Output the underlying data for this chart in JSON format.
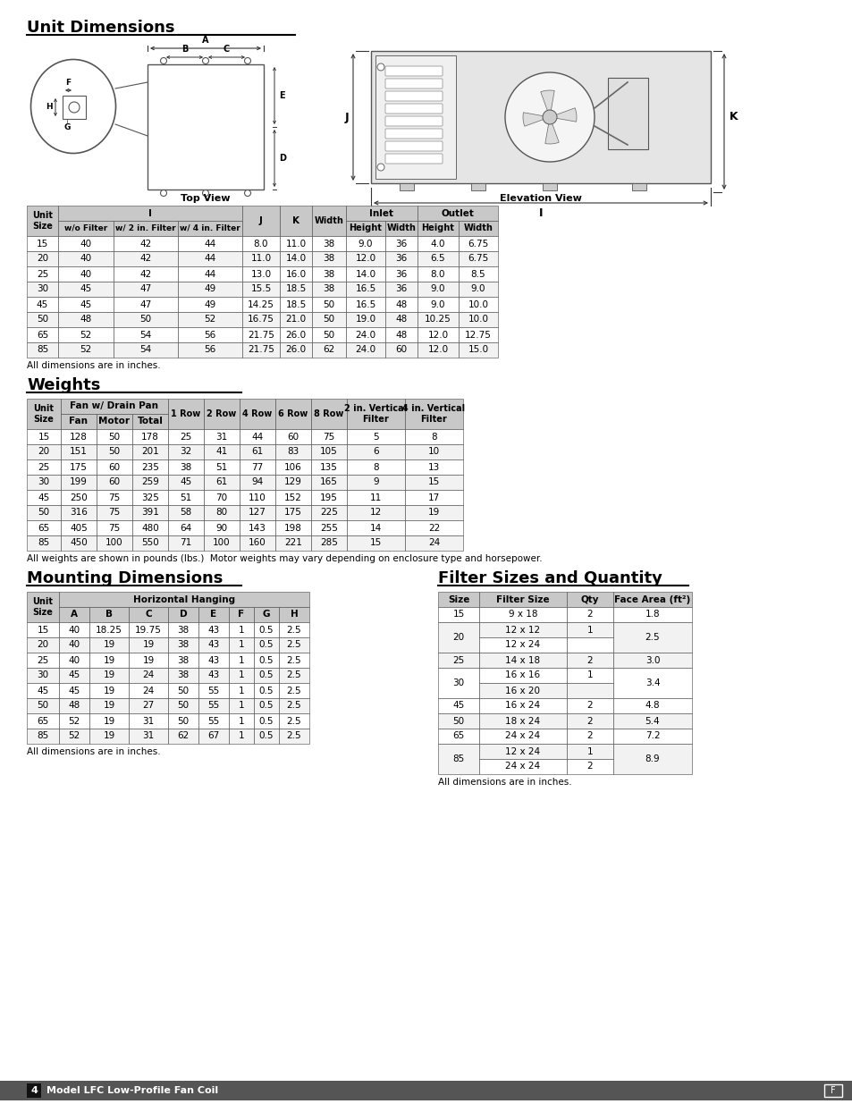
{
  "page_bg": "#ffffff",
  "title1": "Unit Dimensions",
  "title2": "Weights",
  "title3": "Mounting Dimensions",
  "title4": "Filter Sizes and Quantity",
  "ud_data": [
    [
      "15",
      "40",
      "42",
      "44",
      "8.0",
      "11.0",
      "38",
      "9.0",
      "36",
      "4.0",
      "6.75"
    ],
    [
      "20",
      "40",
      "42",
      "44",
      "11.0",
      "14.0",
      "38",
      "12.0",
      "36",
      "6.5",
      "6.75"
    ],
    [
      "25",
      "40",
      "42",
      "44",
      "13.0",
      "16.0",
      "38",
      "14.0",
      "36",
      "8.0",
      "8.5"
    ],
    [
      "30",
      "45",
      "47",
      "49",
      "15.5",
      "18.5",
      "38",
      "16.5",
      "36",
      "9.0",
      "9.0"
    ],
    [
      "45",
      "45",
      "47",
      "49",
      "14.25",
      "18.5",
      "50",
      "16.5",
      "48",
      "9.0",
      "10.0"
    ],
    [
      "50",
      "48",
      "50",
      "52",
      "16.75",
      "21.0",
      "50",
      "19.0",
      "48",
      "10.25",
      "10.0"
    ],
    [
      "65",
      "52",
      "54",
      "56",
      "21.75",
      "26.0",
      "50",
      "24.0",
      "48",
      "12.0",
      "12.75"
    ],
    [
      "85",
      "52",
      "54",
      "56",
      "21.75",
      "26.0",
      "62",
      "24.0",
      "60",
      "12.0",
      "15.0"
    ]
  ],
  "wt_data": [
    [
      "15",
      "128",
      "50",
      "178",
      "25",
      "31",
      "44",
      "60",
      "75",
      "5",
      "8"
    ],
    [
      "20",
      "151",
      "50",
      "201",
      "32",
      "41",
      "61",
      "83",
      "105",
      "6",
      "10"
    ],
    [
      "25",
      "175",
      "60",
      "235",
      "38",
      "51",
      "77",
      "106",
      "135",
      "8",
      "13"
    ],
    [
      "30",
      "199",
      "60",
      "259",
      "45",
      "61",
      "94",
      "129",
      "165",
      "9",
      "15"
    ],
    [
      "45",
      "250",
      "75",
      "325",
      "51",
      "70",
      "110",
      "152",
      "195",
      "11",
      "17"
    ],
    [
      "50",
      "316",
      "75",
      "391",
      "58",
      "80",
      "127",
      "175",
      "225",
      "12",
      "19"
    ],
    [
      "65",
      "405",
      "75",
      "480",
      "64",
      "90",
      "143",
      "198",
      "255",
      "14",
      "22"
    ],
    [
      "85",
      "450",
      "100",
      "550",
      "71",
      "100",
      "160",
      "221",
      "285",
      "15",
      "24"
    ]
  ],
  "md_data": [
    [
      "15",
      "40",
      "18.25",
      "19.75",
      "38",
      "43",
      "1",
      "0.5",
      "2.5"
    ],
    [
      "20",
      "40",
      "19",
      "19",
      "38",
      "43",
      "1",
      "0.5",
      "2.5"
    ],
    [
      "25",
      "40",
      "19",
      "19",
      "38",
      "43",
      "1",
      "0.5",
      "2.5"
    ],
    [
      "30",
      "45",
      "19",
      "24",
      "38",
      "43",
      "1",
      "0.5",
      "2.5"
    ],
    [
      "45",
      "45",
      "19",
      "24",
      "50",
      "55",
      "1",
      "0.5",
      "2.5"
    ],
    [
      "50",
      "48",
      "19",
      "27",
      "50",
      "55",
      "1",
      "0.5",
      "2.5"
    ],
    [
      "65",
      "52",
      "19",
      "31",
      "50",
      "55",
      "1",
      "0.5",
      "2.5"
    ],
    [
      "85",
      "52",
      "19",
      "31",
      "62",
      "67",
      "1",
      "0.5",
      "2.5"
    ]
  ],
  "header_bg": "#c8c8c8",
  "footer_bg": "#555555"
}
